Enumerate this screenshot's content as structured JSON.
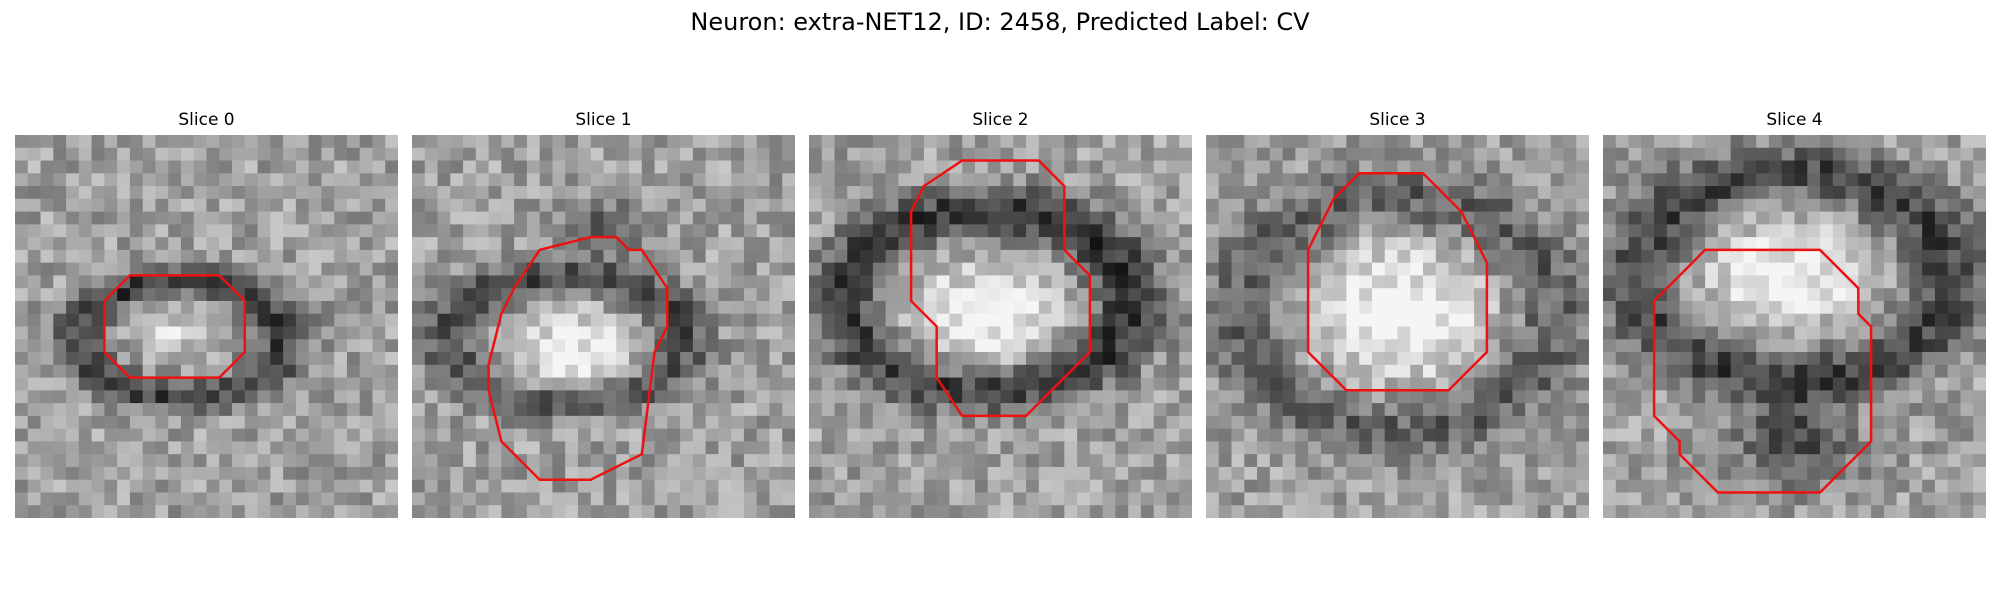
{
  "figure": {
    "title": "Neuron: extra-NET12, ID: 2458, Predicted Label: CV"
  },
  "colors": {
    "contour": "#ee1111"
  },
  "panels": [
    {
      "title": "Slice 0",
      "seed": 11,
      "contour": [
        [
          13,
          11
        ],
        [
          16,
          11
        ],
        [
          18,
          13
        ],
        [
          18,
          17
        ],
        [
          16,
          19
        ],
        [
          9,
          19
        ],
        [
          7,
          17
        ],
        [
          7,
          13
        ],
        [
          9,
          11
        ]
      ],
      "blobs": [
        {
          "cx": 13,
          "cy": 16,
          "rx": 8,
          "ry": 4.5,
          "v": -100,
          "ring": true
        },
        {
          "cx": 12,
          "cy": 15.5,
          "rx": 3,
          "ry": 1.8,
          "v": 70,
          "ring": false
        }
      ]
    },
    {
      "title": "Slice 1",
      "seed": 23,
      "contour": [
        [
          14,
          8
        ],
        [
          16,
          8
        ],
        [
          17,
          9
        ],
        [
          18,
          9
        ],
        [
          20,
          12
        ],
        [
          20,
          15
        ],
        [
          19,
          17
        ],
        [
          18,
          25
        ],
        [
          14,
          27
        ],
        [
          10,
          27
        ],
        [
          7,
          24
        ],
        [
          6,
          20
        ],
        [
          6,
          18
        ],
        [
          7,
          14
        ],
        [
          8,
          12
        ],
        [
          10,
          9
        ]
      ],
      "blobs": [
        {
          "cx": 12,
          "cy": 16,
          "rx": 9,
          "ry": 5,
          "v": -90,
          "ring": true
        },
        {
          "cx": 12.5,
          "cy": 17,
          "rx": 6,
          "ry": 3.5,
          "v": 85,
          "ring": false
        },
        {
          "cx": 15,
          "cy": 7,
          "rx": 3,
          "ry": 2,
          "v": -80,
          "ring": false
        }
      ]
    },
    {
      "title": "Slice 2",
      "seed": 37,
      "contour": [
        [
          15,
          2
        ],
        [
          18,
          2
        ],
        [
          20,
          4
        ],
        [
          20,
          9
        ],
        [
          21,
          10
        ],
        [
          22,
          11
        ],
        [
          22,
          17
        ],
        [
          17,
          22
        ],
        [
          12,
          22
        ],
        [
          10,
          19
        ],
        [
          10,
          15
        ],
        [
          9,
          14
        ],
        [
          8,
          13
        ],
        [
          8,
          6
        ],
        [
          9,
          4
        ],
        [
          12,
          2
        ]
      ],
      "blobs": [
        {
          "cx": 14,
          "cy": 13,
          "rx": 11,
          "ry": 7,
          "v": -110,
          "ring": true
        },
        {
          "cx": 13.5,
          "cy": 14.5,
          "rx": 7,
          "ry": 4.5,
          "v": 90,
          "ring": false
        }
      ]
    },
    {
      "title": "Slice 3",
      "seed": 53,
      "contour": [
        [
          12,
          3
        ],
        [
          17,
          3
        ],
        [
          20,
          6
        ],
        [
          21,
          8
        ],
        [
          22,
          10
        ],
        [
          22,
          17
        ],
        [
          19,
          20
        ],
        [
          14,
          20
        ],
        [
          11,
          20
        ],
        [
          8,
          17
        ],
        [
          8,
          9
        ],
        [
          9,
          7
        ],
        [
          10,
          5
        ]
      ],
      "blobs": [
        {
          "cx": 15,
          "cy": 14,
          "rx": 12,
          "ry": 9,
          "v": -70,
          "ring": true
        },
        {
          "cx": 15,
          "cy": 14,
          "rx": 8,
          "ry": 6,
          "v": 95,
          "ring": false
        }
      ]
    },
    {
      "title": "Slice 4",
      "seed": 71,
      "contour": [
        [
          11,
          9
        ],
        [
          17,
          9
        ],
        [
          20,
          12
        ],
        [
          20,
          14
        ],
        [
          21,
          15
        ],
        [
          21,
          24
        ],
        [
          19,
          26
        ],
        [
          17,
          28
        ],
        [
          14,
          28
        ],
        [
          9,
          28
        ],
        [
          6,
          25
        ],
        [
          6,
          24
        ],
        [
          4,
          22
        ],
        [
          4,
          13
        ],
        [
          7,
          10
        ],
        [
          8,
          9
        ]
      ],
      "blobs": [
        {
          "cx": 15,
          "cy": 11,
          "rx": 12,
          "ry": 8,
          "v": -95,
          "ring": true
        },
        {
          "cx": 14,
          "cy": 11,
          "rx": 7,
          "ry": 4.5,
          "v": 95,
          "ring": false
        },
        {
          "cx": 15,
          "cy": 24,
          "rx": 5,
          "ry": 3.5,
          "v": -90,
          "ring": false
        }
      ]
    }
  ]
}
